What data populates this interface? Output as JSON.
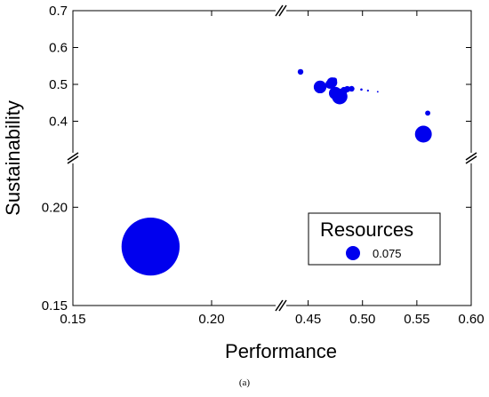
{
  "chart_data": {
    "type": "scatter",
    "subtype": "bubble",
    "caption": "(a)",
    "xlabel": "Performance",
    "ylabel": "Sustainability",
    "x_segments": [
      [
        0.15,
        0.225
      ],
      [
        0.425,
        0.6
      ]
    ],
    "y_segments": [
      [
        0.15,
        0.225
      ],
      [
        0.3,
        0.7
      ]
    ],
    "x_ticks": [
      0.15,
      0.2,
      0.45,
      0.5,
      0.55,
      0.6
    ],
    "x_tick_labels": [
      "0.15",
      "0.20",
      "0.45",
      "0.50",
      "0.55",
      "0.60"
    ],
    "y_ticks": [
      0.15,
      0.2,
      0.4,
      0.5,
      0.6,
      0.7
    ],
    "y_tick_labels": [
      "0.15",
      "0.20",
      "0.4",
      "0.5",
      "0.6",
      "0.7"
    ],
    "bubble_color": "#0000ee",
    "legend": {
      "title": "Resources",
      "entries": [
        {
          "label": "0.075",
          "size": 0.075
        }
      ],
      "position": "bottom-right"
    },
    "points": [
      {
        "x": 0.178,
        "y": 0.18,
        "size": 1.25
      },
      {
        "x": 0.443,
        "y": 0.534,
        "size": 0.012
      },
      {
        "x": 0.461,
        "y": 0.493,
        "size": 0.06
      },
      {
        "x": 0.47,
        "y": 0.5,
        "size": 0.03
      },
      {
        "x": 0.472,
        "y": 0.505,
        "size": 0.04
      },
      {
        "x": 0.474,
        "y": 0.511,
        "size": 0.012
      },
      {
        "x": 0.475,
        "y": 0.476,
        "size": 0.06
      },
      {
        "x": 0.479,
        "y": 0.467,
        "size": 0.09
      },
      {
        "x": 0.483,
        "y": 0.483,
        "size": 0.02
      },
      {
        "x": 0.486,
        "y": 0.487,
        "size": 0.015
      },
      {
        "x": 0.49,
        "y": 0.488,
        "size": 0.012
      },
      {
        "x": 0.499,
        "y": 0.486,
        "size": 0.002
      },
      {
        "x": 0.505,
        "y": 0.483,
        "size": 0.0015
      },
      {
        "x": 0.514,
        "y": 0.48,
        "size": 0.001
      },
      {
        "x": 0.556,
        "y": 0.365,
        "size": 0.105
      },
      {
        "x": 0.56,
        "y": 0.422,
        "size": 0.01
      }
    ]
  }
}
